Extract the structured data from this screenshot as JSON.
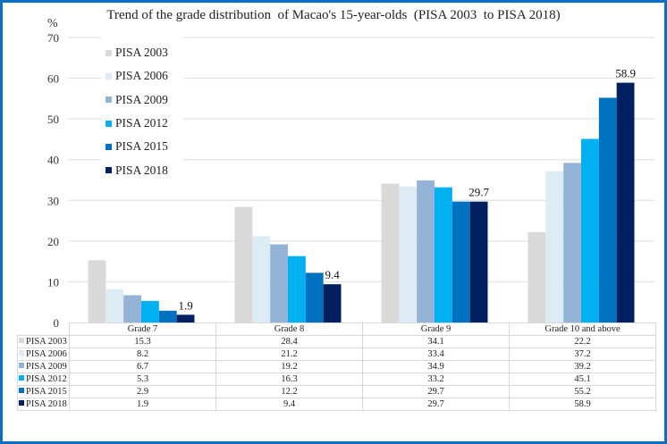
{
  "chart_data": {
    "type": "bar",
    "title": "Trend of the grade distribution  of Macao's 15-year-olds  (PISA 2003  to PISA 2018)",
    "ylabel": "%",
    "xlabel": "",
    "ylim": [
      0,
      70
    ],
    "yticks": [
      0,
      10,
      20,
      30,
      40,
      50,
      60,
      70
    ],
    "grid": true,
    "legend_position": "top-left",
    "categories": [
      "Grade 7",
      "Grade 8",
      "Grade 9",
      "Grade 10 and above"
    ],
    "series": [
      {
        "name": "PISA 2003",
        "color": "#d9d9d9",
        "values": [
          15.3,
          28.4,
          34.1,
          22.2
        ]
      },
      {
        "name": "PISA 2006",
        "color": "#ddebf5",
        "values": [
          8.2,
          21.2,
          33.4,
          37.2
        ]
      },
      {
        "name": "PISA 2009",
        "color": "#95b3d7",
        "values": [
          6.7,
          19.2,
          34.9,
          39.2
        ]
      },
      {
        "name": "PISA 2012",
        "color": "#00b0f0",
        "values": [
          5.3,
          16.3,
          33.2,
          45.1
        ]
      },
      {
        "name": "PISA 2015",
        "color": "#0070c0",
        "values": [
          2.9,
          12.2,
          29.7,
          55.2
        ]
      },
      {
        "name": "PISA 2018",
        "color": "#002060",
        "values": [
          1.9,
          9.4,
          29.7,
          58.9
        ]
      }
    ],
    "data_labels": [
      {
        "series": "PISA 2018",
        "category": "Grade 7",
        "text": "1.9"
      },
      {
        "series": "PISA 2018",
        "category": "Grade 8",
        "text": "9.4"
      },
      {
        "series": "PISA 2018",
        "category": "Grade 9",
        "text": "29.7"
      },
      {
        "series": "PISA 2018",
        "category": "Grade 10 and above",
        "text": "58.9"
      }
    ],
    "data_table": true
  },
  "table": {
    "rows": [
      {
        "label": "PISA 2003",
        "cells": [
          "15.3",
          "28.4",
          "34.1",
          "22.2"
        ]
      },
      {
        "label": "PISA 2006",
        "cells": [
          "8.2",
          "21.2",
          "33.4",
          "37.2"
        ]
      },
      {
        "label": "PISA 2009",
        "cells": [
          "6.7",
          "19.2",
          "34.9",
          "39.2"
        ]
      },
      {
        "label": "PISA 2012",
        "cells": [
          "5.3",
          "16.3",
          "33.2",
          "45.1"
        ]
      },
      {
        "label": "PISA 2015",
        "cells": [
          "2.9",
          "12.2",
          "29.7",
          "55.2"
        ]
      },
      {
        "label": "PISA 2018",
        "cells": [
          "1.9",
          "9.4",
          "29.7",
          "58.9"
        ]
      }
    ]
  },
  "colors": {
    "frame_border": "#0a6fc2",
    "gridline": "#e3e3e3"
  }
}
